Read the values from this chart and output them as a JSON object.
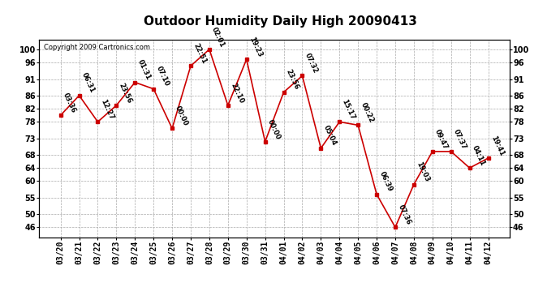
{
  "title": "Outdoor Humidity Daily High 20090413",
  "copyright": "Copyright 2009 Cartronics.com",
  "x_labels": [
    "03/20",
    "03/21",
    "03/22",
    "03/23",
    "03/24",
    "03/25",
    "03/26",
    "03/27",
    "03/28",
    "03/29",
    "03/30",
    "03/31",
    "04/01",
    "04/02",
    "04/03",
    "04/04",
    "04/05",
    "04/06",
    "04/07",
    "04/08",
    "04/09",
    "04/10",
    "04/11",
    "04/12"
  ],
  "y_values": [
    80,
    86,
    78,
    83,
    90,
    88,
    76,
    95,
    100,
    83,
    97,
    72,
    87,
    92,
    70,
    78,
    77,
    56,
    46,
    59,
    69,
    69,
    64,
    67
  ],
  "time_labels": [
    "03:36",
    "06:31",
    "12:27",
    "23:56",
    "01:31",
    "07:10",
    "00:00",
    "22:51",
    "02:01",
    "22:10",
    "19:23",
    "00:00",
    "23:56",
    "07:32",
    "05:04",
    "15:17",
    "00:22",
    "06:39",
    "07:36",
    "19:03",
    "09:47",
    "07:37",
    "04:11",
    "19:41"
  ],
  "line_color": "#cc0000",
  "marker_color": "#cc0000",
  "bg_color": "#ffffff",
  "plot_bg_color": "#ffffff",
  "grid_color": "#aaaaaa",
  "y_ticks": [
    46,
    50,
    55,
    60,
    64,
    68,
    73,
    78,
    82,
    86,
    91,
    96,
    100
  ],
  "ylim": [
    43,
    103
  ],
  "title_fontsize": 11,
  "tick_fontsize": 7,
  "annot_fontsize": 6
}
